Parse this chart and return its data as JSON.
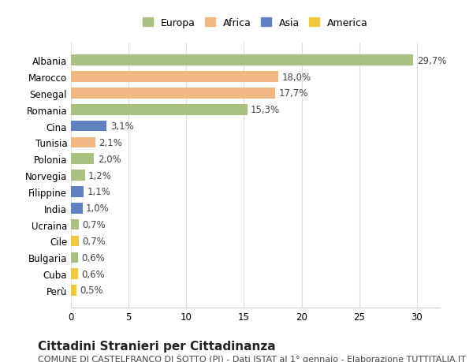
{
  "categories": [
    "Albania",
    "Marocco",
    "Senegal",
    "Romania",
    "Cina",
    "Tunisia",
    "Polonia",
    "Norvegia",
    "Filippine",
    "India",
    "Ucraina",
    "Cile",
    "Bulgaria",
    "Cuba",
    "Perù"
  ],
  "values": [
    29.7,
    18.0,
    17.7,
    15.3,
    3.1,
    2.1,
    2.0,
    1.2,
    1.1,
    1.0,
    0.7,
    0.7,
    0.6,
    0.6,
    0.5
  ],
  "labels": [
    "29,7%",
    "18,0%",
    "17,7%",
    "15,3%",
    "3,1%",
    "2,1%",
    "2,0%",
    "1,2%",
    "1,1%",
    "1,0%",
    "0,7%",
    "0,7%",
    "0,6%",
    "0,6%",
    "0,5%"
  ],
  "continents": [
    "Europa",
    "Africa",
    "Africa",
    "Europa",
    "Asia",
    "Africa",
    "Europa",
    "Europa",
    "Asia",
    "Asia",
    "Europa",
    "America",
    "Europa",
    "America",
    "America"
  ],
  "continent_colors": {
    "Europa": "#a8c080",
    "Africa": "#f0b882",
    "Asia": "#6080c0",
    "America": "#f0c840"
  },
  "legend_order": [
    "Europa",
    "Africa",
    "Asia",
    "America"
  ],
  "title": "Cittadini Stranieri per Cittadinanza",
  "subtitle": "COMUNE DI CASTELFRANCO DI SOTTO (PI) - Dati ISTAT al 1° gennaio - Elaborazione TUTTITALIA.IT",
  "xlim": [
    0,
    32
  ],
  "xticks": [
    0,
    5,
    10,
    15,
    20,
    25,
    30
  ],
  "background_color": "#ffffff",
  "grid_color": "#dddddd",
  "bar_height": 0.65,
  "title_fontsize": 11,
  "subtitle_fontsize": 8,
  "tick_fontsize": 8.5,
  "label_fontsize": 8.5,
  "legend_fontsize": 9
}
